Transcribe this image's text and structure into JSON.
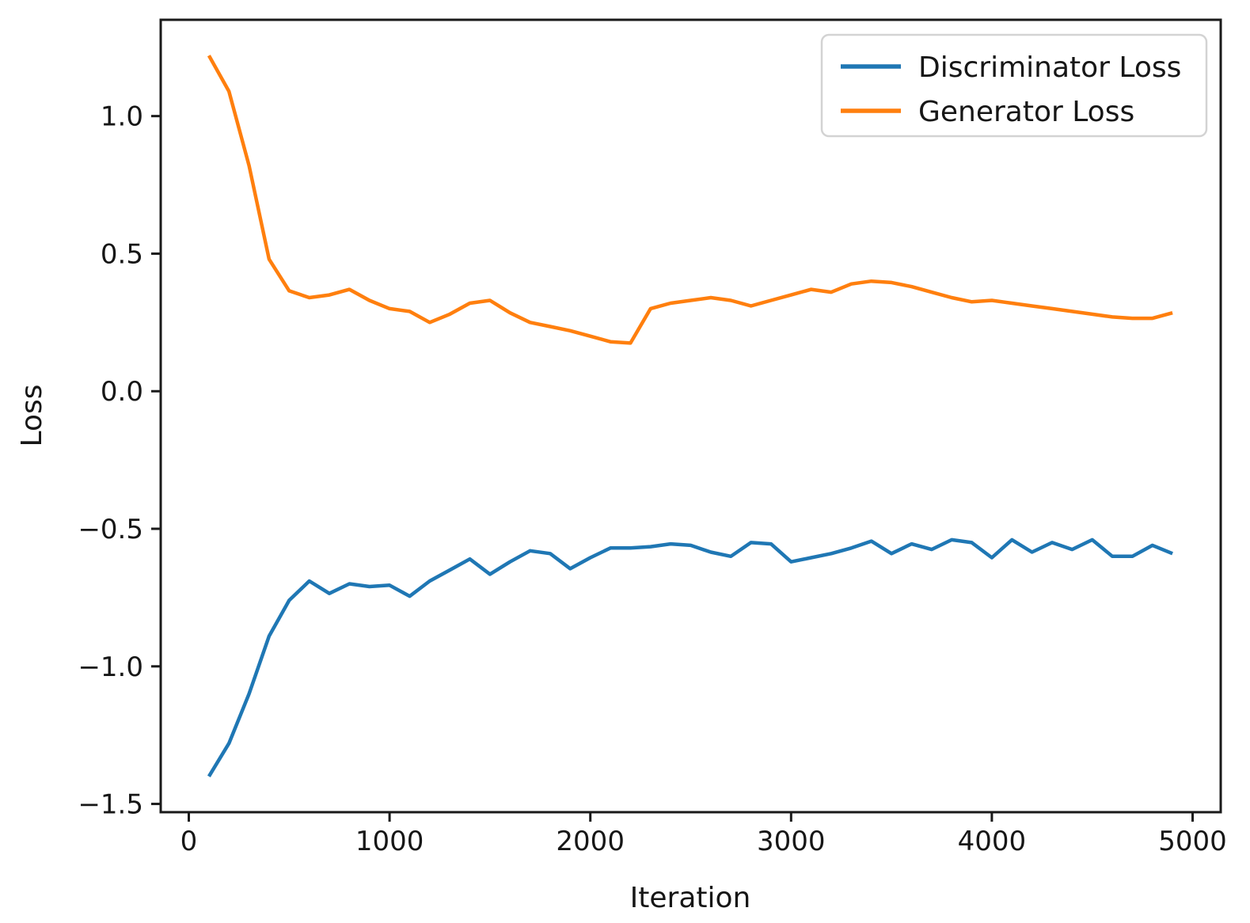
{
  "figure": {
    "background": "#ffffff"
  },
  "colors": {
    "discriminator_line": "#1f77b4",
    "generator_line": "#ff7f0e",
    "spine": "#1a1a1a",
    "text": "#161616",
    "legend_border": "#d3d3d3",
    "legend_background": "#ffffff"
  },
  "chart_data": {
    "type": "line",
    "title": "",
    "xlabel": "Iteration",
    "ylabel": "Loss",
    "grid": false,
    "legend_position": "upper right",
    "xlim": [
      -140,
      5140
    ],
    "ylim": [
      -1.53,
      1.35
    ],
    "xticks": [
      0,
      1000,
      2000,
      3000,
      4000,
      5000
    ],
    "yticks": [
      -1.5,
      -1.0,
      -0.5,
      0.0,
      0.5,
      1.0
    ],
    "x": [
      100,
      200,
      300,
      400,
      500,
      600,
      700,
      800,
      900,
      1000,
      1100,
      1200,
      1300,
      1400,
      1500,
      1600,
      1700,
      1800,
      1900,
      2000,
      2100,
      2200,
      2300,
      2400,
      2500,
      2600,
      2700,
      2800,
      2900,
      3000,
      3100,
      3200,
      3300,
      3400,
      3500,
      3600,
      3700,
      3800,
      3900,
      4000,
      4100,
      4200,
      4300,
      4400,
      4500,
      4600,
      4700,
      4800,
      4900
    ],
    "series": [
      {
        "name": "Discriminator Loss",
        "color": "#1f77b4",
        "values": [
          -1.4,
          -1.28,
          -1.1,
          -0.89,
          -0.76,
          -0.69,
          -0.735,
          -0.7,
          -0.71,
          -0.705,
          -0.745,
          -0.69,
          -0.65,
          -0.61,
          -0.665,
          -0.62,
          -0.58,
          -0.59,
          -0.645,
          -0.605,
          -0.57,
          -0.57,
          -0.565,
          -0.555,
          -0.56,
          -0.585,
          -0.6,
          -0.55,
          -0.555,
          -0.62,
          -0.605,
          -0.59,
          -0.57,
          -0.545,
          -0.59,
          -0.555,
          -0.575,
          -0.54,
          -0.55,
          -0.605,
          -0.54,
          -0.585,
          -0.55,
          -0.575,
          -0.54,
          -0.6,
          -0.6,
          -0.56,
          -0.59
        ]
      },
      {
        "name": "Generator Loss",
        "color": "#ff7f0e",
        "values": [
          1.22,
          1.09,
          0.82,
          0.48,
          0.365,
          0.34,
          0.35,
          0.37,
          0.33,
          0.3,
          0.29,
          0.25,
          0.28,
          0.32,
          0.33,
          0.285,
          0.25,
          0.235,
          0.22,
          0.2,
          0.18,
          0.175,
          0.3,
          0.32,
          0.33,
          0.34,
          0.33,
          0.31,
          0.33,
          0.35,
          0.37,
          0.36,
          0.39,
          0.4,
          0.395,
          0.38,
          0.36,
          0.34,
          0.325,
          0.33,
          0.32,
          0.31,
          0.3,
          0.29,
          0.28,
          0.27,
          0.265,
          0.265,
          0.285
        ]
      }
    ]
  }
}
